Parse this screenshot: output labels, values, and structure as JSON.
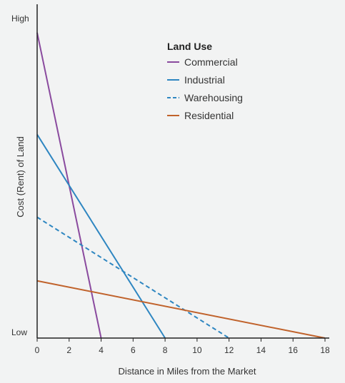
{
  "chart_data": {
    "type": "line",
    "xlabel": "Distance in Miles from the Market",
    "ylabel": "Cost (Rent) of Land",
    "y_high_label": "High",
    "y_low_label": "Low",
    "xlim": [
      0,
      18
    ],
    "ylim": [
      0,
      100
    ],
    "x_ticks": [
      "0",
      "2",
      "4",
      "6",
      "8",
      "10",
      "12",
      "14",
      "16",
      "18"
    ],
    "grid": false,
    "legend_title": "Land Use",
    "legend_position": "top-right",
    "series": [
      {
        "name": "Commercial",
        "color": "#8a4a9e",
        "dash": "solid",
        "x": [
          0,
          4
        ],
        "y": [
          96,
          0
        ]
      },
      {
        "name": "Industrial",
        "color": "#2e86c1",
        "dash": "solid",
        "x": [
          0,
          8
        ],
        "y": [
          64,
          0
        ]
      },
      {
        "name": "Warehousing",
        "color": "#2e86c1",
        "dash": "dashed",
        "x": [
          0,
          12
        ],
        "y": [
          38,
          0
        ]
      },
      {
        "name": "Residential",
        "color": "#c0622b",
        "dash": "solid",
        "x": [
          0,
          18
        ],
        "y": [
          18,
          0
        ]
      }
    ]
  }
}
